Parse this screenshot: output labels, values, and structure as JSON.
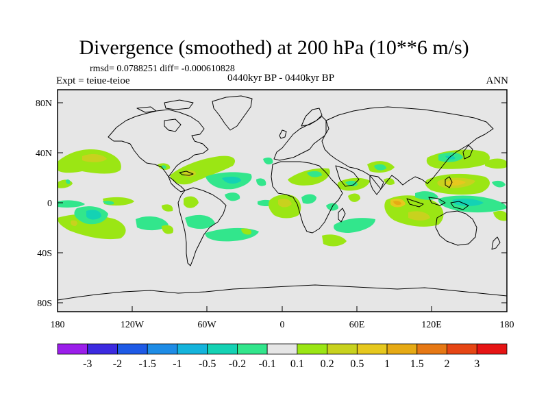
{
  "title": "Divergence (smoothed) at 200 hPa (10**6 m/s)",
  "stats": "rmsd= 0.0788251 diff= -0.000610828",
  "experiment": "Expt = teiue-teioe",
  "period": "0440kyr BP - 0440kyr BP",
  "season": "ANN",
  "map": {
    "lat_ticks": [
      "80N",
      "40N",
      "0",
      "40S",
      "80S"
    ],
    "lon_ticks": [
      "180",
      "120W",
      "60W",
      "0",
      "60E",
      "120E",
      "180"
    ],
    "background_color": "#e6e6e6",
    "land_outline": "coastlines"
  },
  "colorbar": {
    "labels": [
      "-3",
      "-2",
      "-1.5",
      "-1",
      "-0.5",
      "-0.2",
      "-0.1",
      "0.1",
      "0.2",
      "0.5",
      "1",
      "1.5",
      "2",
      "3"
    ],
    "colors": [
      "#9b1eea",
      "#3c2ae0",
      "#1e5ae6",
      "#1e8ce6",
      "#14b4dc",
      "#14d2b4",
      "#32e68c",
      "#e6e6e6",
      "#9be614",
      "#c8d21e",
      "#e6c81e",
      "#e6aa14",
      "#e67814",
      "#e64614",
      "#e61414"
    ]
  }
}
